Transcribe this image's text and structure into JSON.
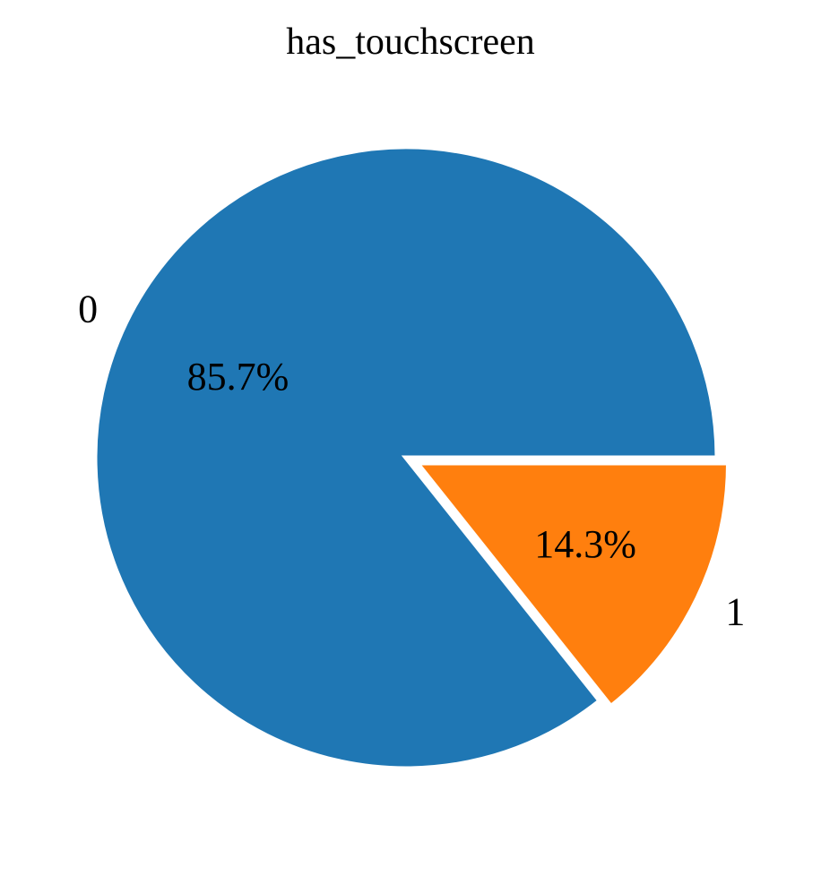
{
  "chart_data": {
    "type": "pie",
    "title": "has_touchscreen",
    "slices": [
      {
        "label": "0",
        "value": 85.7,
        "pct_label": "85.7%",
        "color": "#1f77b4",
        "explode": 0
      },
      {
        "label": "1",
        "value": 14.3,
        "pct_label": "14.3%",
        "color": "#ff7f0e",
        "explode": 0.04
      }
    ],
    "start_angle": 0,
    "direction": "counterclockwise",
    "wedge_edge_color": "#ffffff"
  }
}
